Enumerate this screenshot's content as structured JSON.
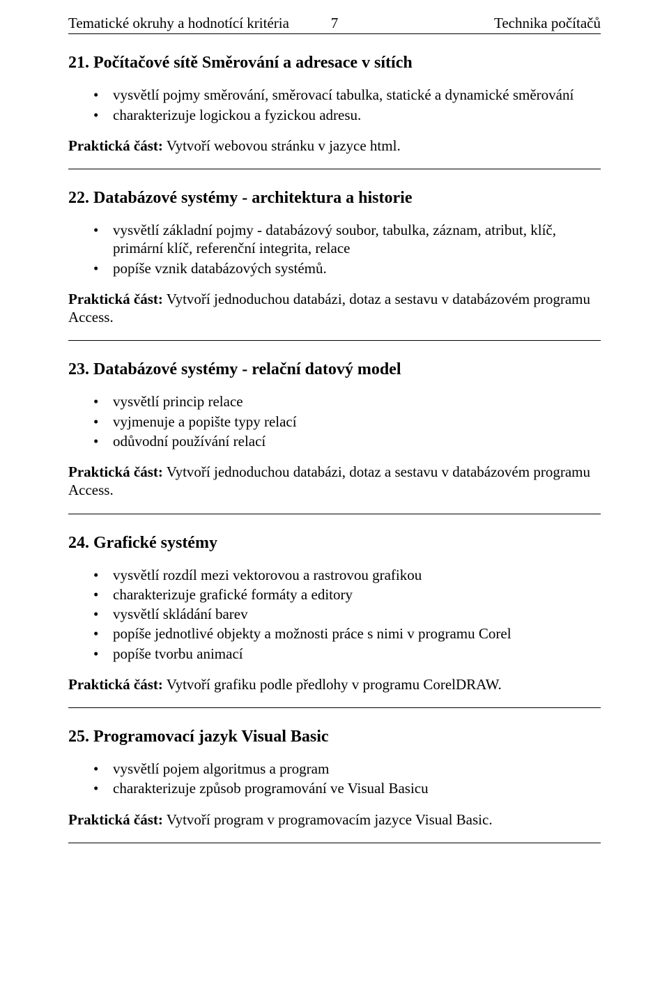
{
  "header": {
    "left": "Tematické okruhy a hodnotící kritéria",
    "page": "7",
    "right": "Technika počítačů"
  },
  "sections": [
    {
      "title": "21.  Počítačové sítě Směrování a adresace v sítích",
      "bullets": [
        "vysvětlí pojmy směrování, směrovací tabulka, statické a dynamické směrování",
        "charakterizuje logickou a fyzickou adresu."
      ],
      "practical_label": "Praktická část:",
      "practical_text": " Vytvoří webovou stránku v jazyce html."
    },
    {
      "title": "22.  Databázové systémy - architektura a historie",
      "bullets": [
        "vysvětlí základní pojmy - databázový soubor, tabulka, záznam, atribut, klíč, primární klíč, referenční integrita, relace",
        "popíše vznik databázových systémů."
      ],
      "practical_label": "Praktická část:",
      "practical_text": " Vytvoří jednoduchou databázi, dotaz a sestavu v databázovém programu Access."
    },
    {
      "title": "23.  Databázové systémy - relační datový model",
      "bullets": [
        "vysvětlí princip relace",
        "vyjmenuje a popište typy relací",
        "odůvodní používání relací"
      ],
      "practical_label": "Praktická část:",
      "practical_text": " Vytvoří jednoduchou databázi, dotaz a sestavu v databázovém programu Access."
    },
    {
      "title": "24.  Grafické systémy",
      "bullets": [
        "vysvětlí rozdíl mezi vektorovou a rastrovou grafikou",
        "charakterizuje grafické formáty a editory",
        "vysvětlí skládání barev",
        "popíše jednotlivé objekty a možnosti práce s nimi v programu Corel",
        "popíše tvorbu animací"
      ],
      "practical_label": "Praktická část:",
      "practical_text": " Vytvoří grafiku podle předlohy v programu CorelDRAW."
    },
    {
      "title": "25.  Programovací jazyk Visual Basic",
      "bullets": [
        "vysvětlí pojem algoritmus a program",
        "charakterizuje způsob programování ve Visual Basicu"
      ],
      "practical_label": "Praktická část:",
      "practical_text": " Vytvoří program v programovacím jazyce Visual Basic."
    }
  ]
}
